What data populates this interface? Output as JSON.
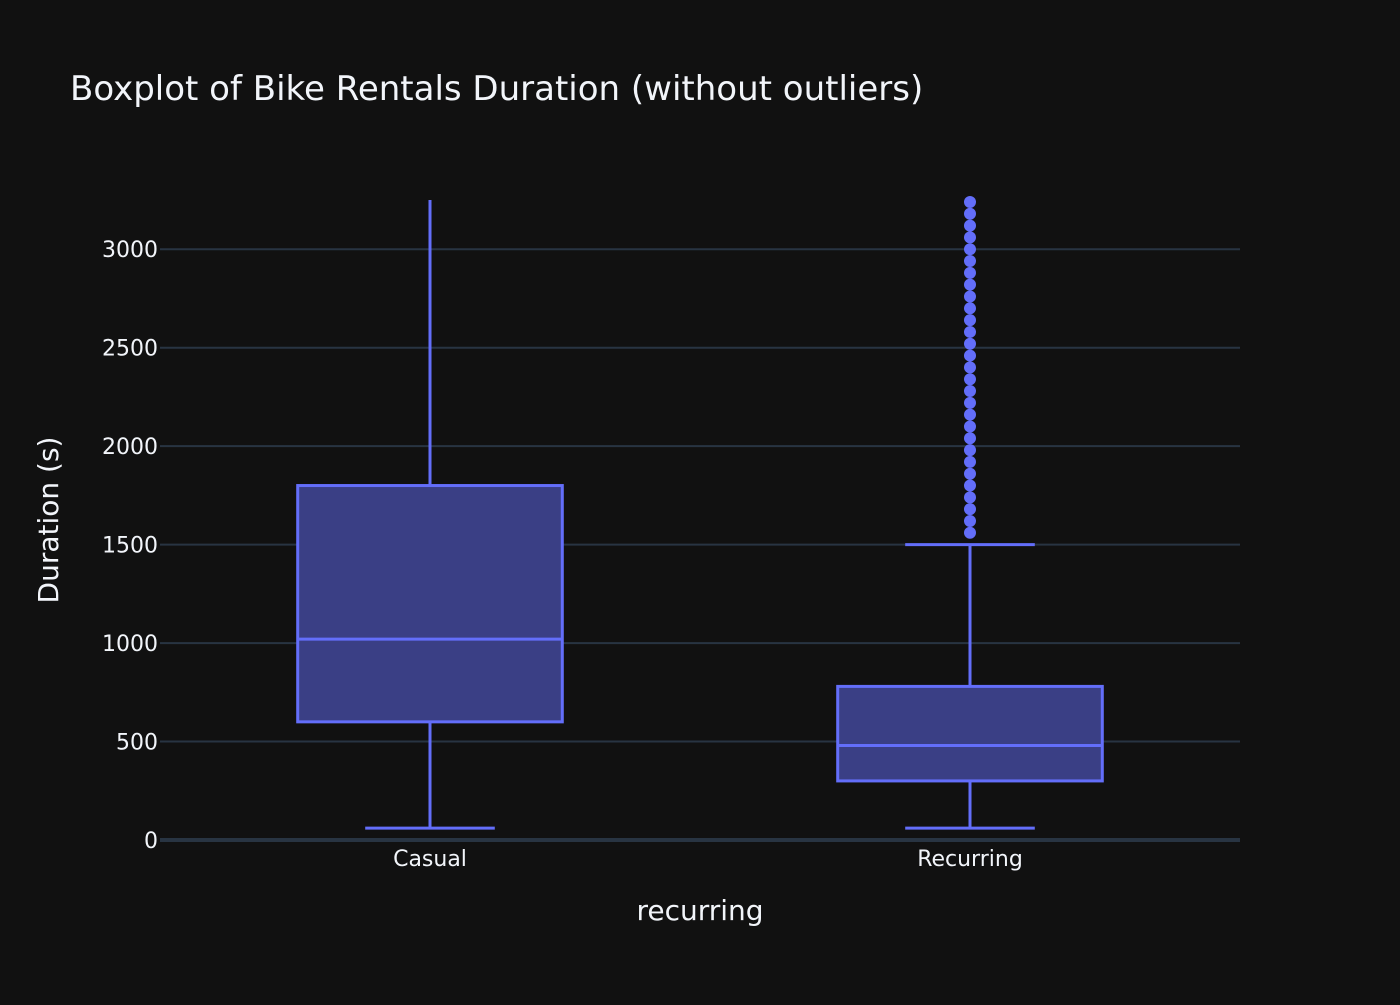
{
  "chart_data": {
    "type": "box",
    "title": "Boxplot of Bike Rentals Duration (without outliers)",
    "xlabel": "recurring",
    "ylabel": "Duration (s)",
    "ylim": [
      0,
      3250
    ],
    "yticks": [
      0,
      500,
      1000,
      1500,
      2000,
      2500,
      3000
    ],
    "grid": true,
    "colors": {
      "background": "#111111",
      "grid": "#283442",
      "box_line": "#636efa",
      "box_fill": "#3a3f85",
      "text": "#f2f5fa"
    },
    "categories": [
      "Casual",
      "Recurring"
    ],
    "boxes": [
      {
        "category": "Casual",
        "lower_fence": 60,
        "q1": 600,
        "median": 1020,
        "q3": 1800,
        "upper_fence": 3250,
        "outliers": []
      },
      {
        "category": "Recurring",
        "lower_fence": 60,
        "q1": 300,
        "median": 480,
        "q3": 780,
        "upper_fence": 1500,
        "outliers": [
          1560,
          1620,
          1680,
          1740,
          1800,
          1860,
          1920,
          1980,
          2040,
          2100,
          2160,
          2220,
          2280,
          2340,
          2400,
          2460,
          2520,
          2580,
          2640,
          2700,
          2760,
          2820,
          2880,
          2940,
          3000,
          3060,
          3120,
          3180,
          3240
        ]
      }
    ]
  }
}
